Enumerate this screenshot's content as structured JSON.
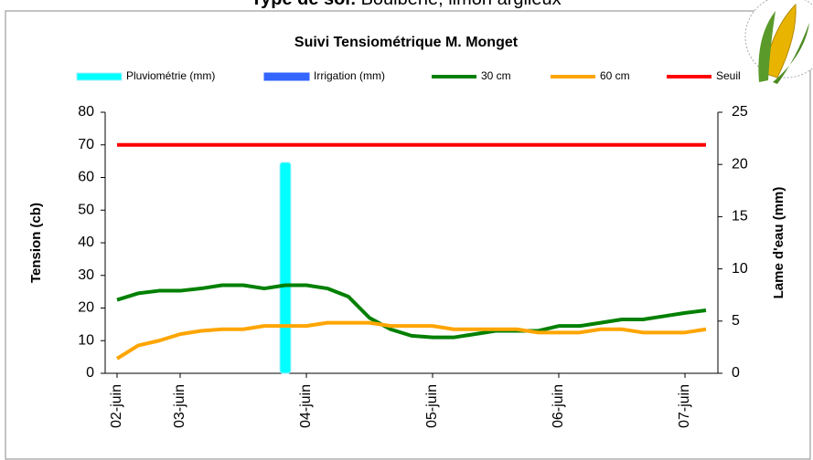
{
  "header": {
    "label": "Type de sol:",
    "text": "Boulbène, limon argileux"
  },
  "chart_data": {
    "type": "line",
    "title": "Suivi Tensiométrique M. Monget",
    "y_label": "Tension (cb)",
    "y2_label": "Lame d'eau (mm)",
    "categories": [
      "02-juin",
      null,
      null,
      "03-juin",
      null,
      null,
      null,
      null,
      null,
      "04-juin",
      null,
      null,
      null,
      null,
      null,
      "05-juin",
      null,
      null,
      null,
      null,
      null,
      "06-juin",
      null,
      null,
      null,
      null,
      null,
      "07-juin",
      null
    ],
    "ylim": [
      0,
      80
    ],
    "yticks": [
      0,
      10,
      20,
      30,
      40,
      50,
      60,
      70,
      80
    ],
    "y2lim": [
      0,
      25
    ],
    "y2ticks": [
      0,
      5,
      10,
      15,
      20,
      25
    ],
    "grid": false,
    "series": [
      {
        "name": "Pluviométrie (mm)",
        "type": "bar",
        "axis": "y2",
        "color": "#00ffff",
        "values": [
          0,
          0,
          0,
          0,
          0,
          0,
          0,
          0,
          20.2,
          0,
          0,
          0,
          0,
          0,
          0,
          0,
          0,
          0,
          0,
          0,
          0,
          0,
          0,
          0,
          0,
          0,
          0,
          0,
          0
        ]
      },
      {
        "name": "Irrigation (mm)",
        "type": "bar",
        "axis": "y2",
        "color": "#3366ff",
        "values": [
          0,
          0,
          0,
          0,
          0,
          0,
          0,
          0,
          0,
          0,
          0,
          0,
          0,
          0,
          0,
          0,
          0,
          0,
          0,
          0,
          0,
          0,
          0,
          0,
          0,
          0,
          0,
          0,
          0
        ]
      },
      {
        "name": "30 cm",
        "type": "line",
        "color": "#008000",
        "values": [
          22.5,
          24.5,
          25.3,
          25.3,
          26,
          27,
          27,
          26,
          27,
          27,
          26,
          23.5,
          17,
          13.5,
          11.5,
          11,
          11,
          12,
          13,
          13,
          13,
          14.5,
          14.5,
          15.5,
          16.5,
          16.5,
          17.5,
          18.5,
          19.3
        ]
      },
      {
        "name": "60 cm",
        "type": "line",
        "color": "#ffa500",
        "values": [
          4.5,
          8.5,
          10,
          12,
          13,
          13.5,
          13.5,
          14.5,
          14.5,
          14.5,
          15.5,
          15.5,
          15.5,
          14.5,
          14.5,
          14.5,
          13.5,
          13.5,
          13.5,
          13.5,
          12.5,
          12.5,
          12.5,
          13.5,
          13.5,
          12.5,
          12.5,
          12.5,
          13.5
        ]
      },
      {
        "name": "Seuil",
        "type": "line",
        "color": "#ff0000",
        "values": [
          70,
          70,
          70,
          70,
          70,
          70,
          70,
          70,
          70,
          70,
          70,
          70,
          70,
          70,
          70,
          70,
          70,
          70,
          70,
          70,
          70,
          70,
          70,
          70,
          70,
          70,
          70,
          70,
          70
        ]
      }
    ]
  }
}
